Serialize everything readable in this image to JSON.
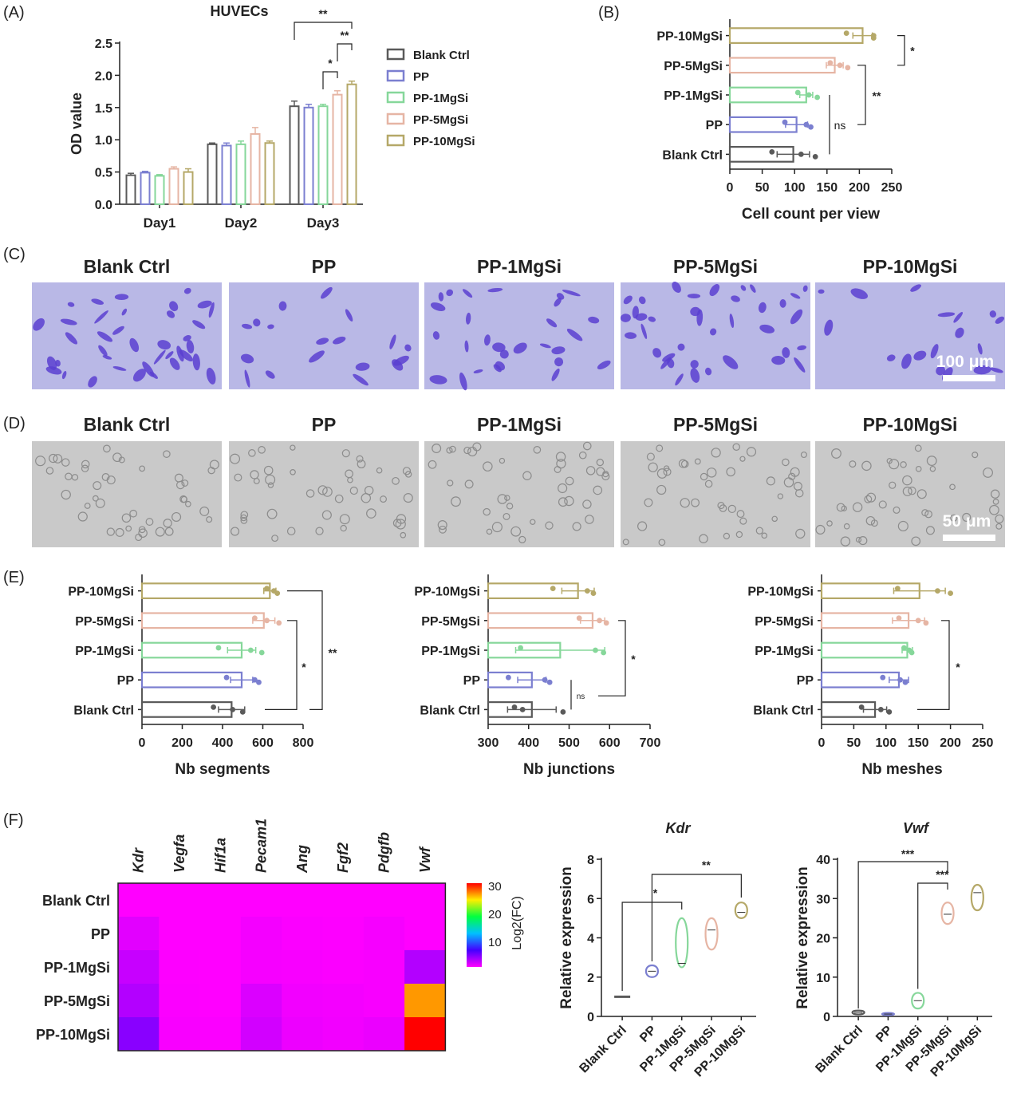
{
  "colors": {
    "blank": "#5a5a5a",
    "pp": "#7b7fd0",
    "mgsi1": "#86d79a",
    "mgsi5": "#e6b5a4",
    "mgsi10": "#b5a868"
  },
  "groups": [
    "Blank Ctrl",
    "PP",
    "PP-1MgSi",
    "PP-5MgSi",
    "PP-10MgSi"
  ],
  "panel_letters": [
    "(A)",
    "(B)",
    "(C)",
    "(D)",
    "(E)",
    "(F)"
  ],
  "scale_bars": {
    "c": "100 μm",
    "d": "50 μm"
  },
  "chart_data": [
    {
      "id": "A",
      "type": "bar",
      "title": "HUVECs",
      "ylabel": "OD value",
      "xlabel": "",
      "categories": [
        "Day1",
        "Day2",
        "Day3"
      ],
      "ylim": [
        0,
        2.5
      ],
      "yticks": [
        "0.0",
        "0.5",
        "1.0",
        "1.5",
        "2.0",
        "2.5"
      ],
      "legend": "right",
      "series": [
        {
          "name": "Blank Ctrl",
          "values": [
            0.45,
            0.93,
            1.52
          ],
          "err": [
            0.03,
            0.02,
            0.08
          ]
        },
        {
          "name": "PP",
          "values": [
            0.49,
            0.91,
            1.5
          ],
          "err": [
            0.02,
            0.04,
            0.05
          ]
        },
        {
          "name": "PP-1MgSi",
          "values": [
            0.44,
            0.93,
            1.52
          ],
          "err": [
            0.02,
            0.05,
            0.03
          ]
        },
        {
          "name": "PP-5MgSi",
          "values": [
            0.55,
            1.09,
            1.7
          ],
          "err": [
            0.03,
            0.1,
            0.06
          ]
        },
        {
          "name": "PP-10MgSi",
          "values": [
            0.5,
            0.95,
            1.86
          ],
          "err": [
            0.05,
            0.03,
            0.05
          ]
        }
      ],
      "significance": [
        {
          "from": "Blank Ctrl",
          "to": "PP-10MgSi",
          "label": "**"
        },
        {
          "from": "PP-5MgSi",
          "to": "PP-10MgSi",
          "label": "**"
        },
        {
          "from": "PP-1MgSi",
          "to": "PP-5MgSi",
          "label": "*"
        }
      ]
    },
    {
      "id": "B",
      "type": "bar",
      "orientation": "horizontal",
      "xlabel": "Cell count per view",
      "categories": [
        "PP-10MgSi",
        "PP-5MgSi",
        "PP-1MgSi",
        "PP",
        "Blank Ctrl"
      ],
      "values": [
        205,
        162,
        118,
        103,
        98
      ],
      "err": [
        15,
        13,
        10,
        17,
        25
      ],
      "points": [
        [
          180,
          222,
          222
        ],
        [
          155,
          170,
          182
        ],
        [
          105,
          122,
          135
        ],
        [
          85,
          118,
          125
        ],
        [
          65,
          110,
          132
        ]
      ],
      "xlim": [
        0,
        250
      ],
      "xticks": [
        "0",
        "50",
        "100",
        "150",
        "200",
        "250"
      ],
      "significance": [
        {
          "from": "PP-10MgSi",
          "to": "PP-5MgSi",
          "label": "*"
        },
        {
          "from": "PP-5MgSi",
          "to": "PP",
          "label": "**"
        },
        {
          "from": "PP-1MgSi",
          "to": "Blank Ctrl",
          "label": "ns"
        }
      ]
    },
    {
      "id": "E1",
      "type": "bar",
      "orientation": "horizontal",
      "xlabel": "Nb segments",
      "categories": [
        "PP-10MgSi",
        "PP-5MgSi",
        "PP-1MgSi",
        "PP",
        "Blank Ctrl"
      ],
      "values": [
        635,
        605,
        495,
        495,
        445
      ],
      "err": [
        30,
        55,
        70,
        55,
        65
      ],
      "points": [
        [
          620,
          655,
          672
        ],
        [
          560,
          620,
          680
        ],
        [
          380,
          540,
          595
        ],
        [
          420,
          560,
          580
        ],
        [
          355,
          450,
          500
        ]
      ],
      "xlim": [
        0,
        800
      ],
      "xticks": [
        "0",
        "200",
        "400",
        "600",
        "800"
      ],
      "significance": [
        {
          "from": "PP-5MgSi",
          "to": "Blank Ctrl",
          "label": "*"
        },
        {
          "from": "PP-10MgSi",
          "to": "Blank Ctrl",
          "label": "**"
        }
      ]
    },
    {
      "id": "E2",
      "type": "bar",
      "orientation": "horizontal",
      "xlabel": "Nb junctions",
      "categories": [
        "PP-10MgSi",
        "PP-5MgSi",
        "PP-1MgSi",
        "PP",
        "Blank Ctrl"
      ],
      "values": [
        522,
        558,
        478,
        408,
        408
      ],
      "err": [
        40,
        30,
        110,
        35,
        60
      ],
      "points": [
        [
          460,
          545,
          560
        ],
        [
          525,
          575,
          592
        ],
        [
          380,
          565,
          585
        ],
        [
          350,
          440,
          452
        ],
        [
          365,
          385,
          485
        ]
      ],
      "xlim": [
        300,
        700
      ],
      "xticks": [
        "300",
        "400",
        "500",
        "600",
        "700"
      ],
      "significance": [
        {
          "from": "PP-5MgSi",
          "to": "Blank Ctrl",
          "label": "*"
        },
        {
          "from": "PP",
          "to": "Blank Ctrl",
          "label": "ns"
        }
      ]
    },
    {
      "id": "E3",
      "type": "bar",
      "orientation": "horizontal",
      "xlabel": "Nb meshes",
      "categories": [
        "PP-10MgSi",
        "PP-5MgSi",
        "PP-1MgSi",
        "PP",
        "Blank Ctrl"
      ],
      "values": [
        152,
        135,
        133,
        120,
        83
      ],
      "err": [
        40,
        25,
        8,
        15,
        18
      ],
      "points": [
        [
          118,
          180,
          200
        ],
        [
          120,
          150,
          162
        ],
        [
          128,
          136,
          140
        ],
        [
          95,
          122,
          130
        ],
        [
          62,
          92,
          105
        ]
      ],
      "xlim": [
        0,
        250
      ],
      "xticks": [
        "0",
        "50",
        "100",
        "150",
        "200",
        "250"
      ],
      "significance": [
        {
          "from": "PP-5MgSi",
          "to": "Blank Ctrl",
          "label": "*"
        }
      ]
    },
    {
      "id": "F-heatmap",
      "type": "heatmap",
      "columns": [
        "Kdr",
        "Vegfa",
        "Hif1a",
        "Pecam1",
        "Ang",
        "Fgf2",
        "Pdgfb",
        "Vwf"
      ],
      "rows": [
        "Blank Ctrl",
        "PP",
        "PP-1MgSi",
        "PP-5MgSi",
        "PP-10MgSi"
      ],
      "values": [
        [
          1,
          1,
          1,
          1,
          1,
          1,
          1,
          1
        ],
        [
          2.3,
          1,
          1,
          1.5,
          1.2,
          1.1,
          1.4,
          0.6
        ],
        [
          3.5,
          1.1,
          1,
          1.4,
          1.3,
          1.2,
          1.3,
          4.2
        ],
        [
          4.2,
          1.2,
          1,
          2.6,
          1.6,
          1.5,
          1.3,
          26
        ],
        [
          5.3,
          1.3,
          1.2,
          3,
          1.8,
          1.6,
          1.9,
          30
        ]
      ],
      "colorbar": {
        "label": "Log2(FC)",
        "ticks": [
          "30",
          "20",
          "10"
        ],
        "range": [
          1,
          30
        ]
      }
    },
    {
      "id": "F-Kdr",
      "type": "violin",
      "title": "Kdr",
      "ylabel": "Relative expression",
      "categories": [
        "Blank Ctrl",
        "PP",
        "PP-1MgSi",
        "PP-5MgSi",
        "PP-10MgSi"
      ],
      "ranges": [
        [
          1,
          1
        ],
        [
          2.0,
          2.6
        ],
        [
          2.5,
          5.0
        ],
        [
          3.4,
          5.0
        ],
        [
          5.0,
          5.8
        ]
      ],
      "medians": [
        1,
        2.3,
        2.7,
        4.4,
        5.3
      ],
      "ylim": [
        0,
        8
      ],
      "yticks": [
        "0",
        "2",
        "4",
        "6",
        "8"
      ],
      "significance": [
        {
          "from": "Blank Ctrl",
          "to": "PP-1MgSi",
          "label": "*"
        },
        {
          "from": "PP",
          "to": "PP-10MgSi",
          "label": "**"
        }
      ]
    },
    {
      "id": "F-Vwf",
      "type": "violin",
      "title": "Vwf",
      "ylabel": "Relative expression",
      "categories": [
        "Blank Ctrl",
        "PP",
        "PP-1MgSi",
        "PP-5MgSi",
        "PP-10MgSi"
      ],
      "ranges": [
        [
          0.5,
          1.5
        ],
        [
          0.3,
          0.9
        ],
        [
          2.0,
          6.0
        ],
        [
          23.5,
          29
        ],
        [
          27,
          33.5
        ]
      ],
      "medians": [
        1,
        0.6,
        4,
        26,
        31.5
      ],
      "ylim": [
        0,
        40
      ],
      "yticks": [
        "0",
        "10",
        "20",
        "30",
        "40"
      ],
      "significance": [
        {
          "from": "Blank Ctrl",
          "to": "PP-5MgSi",
          "label": "***"
        },
        {
          "from": "PP-1MgSi",
          "to": "PP-5MgSi",
          "label": "***"
        }
      ]
    }
  ]
}
